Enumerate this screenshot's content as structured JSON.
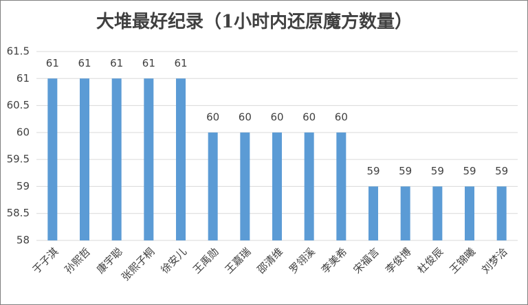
{
  "chart_data": {
    "type": "bar",
    "title": "大堆最好纪录（1小时内还原魔方数量）",
    "categories": [
      "于子淇",
      "孙熙哲",
      "康宇聪",
      "张熙子桐",
      "徐安儿",
      "王禹勋",
      "王嘉瑞",
      "邵清维",
      "罗翎溪",
      "李美希",
      "宋福言",
      "李俊博",
      "杜俊辰",
      "王锦曦",
      "刘梦洽"
    ],
    "values": [
      61,
      61,
      61,
      61,
      61,
      60,
      60,
      60,
      60,
      60,
      59,
      59,
      59,
      59,
      59
    ],
    "color": "#5b9bd5",
    "ylim": [
      58,
      61.5
    ],
    "yticks": [
      58,
      58.5,
      59,
      59.5,
      60,
      60.5,
      61,
      61.5
    ],
    "grid": true
  }
}
